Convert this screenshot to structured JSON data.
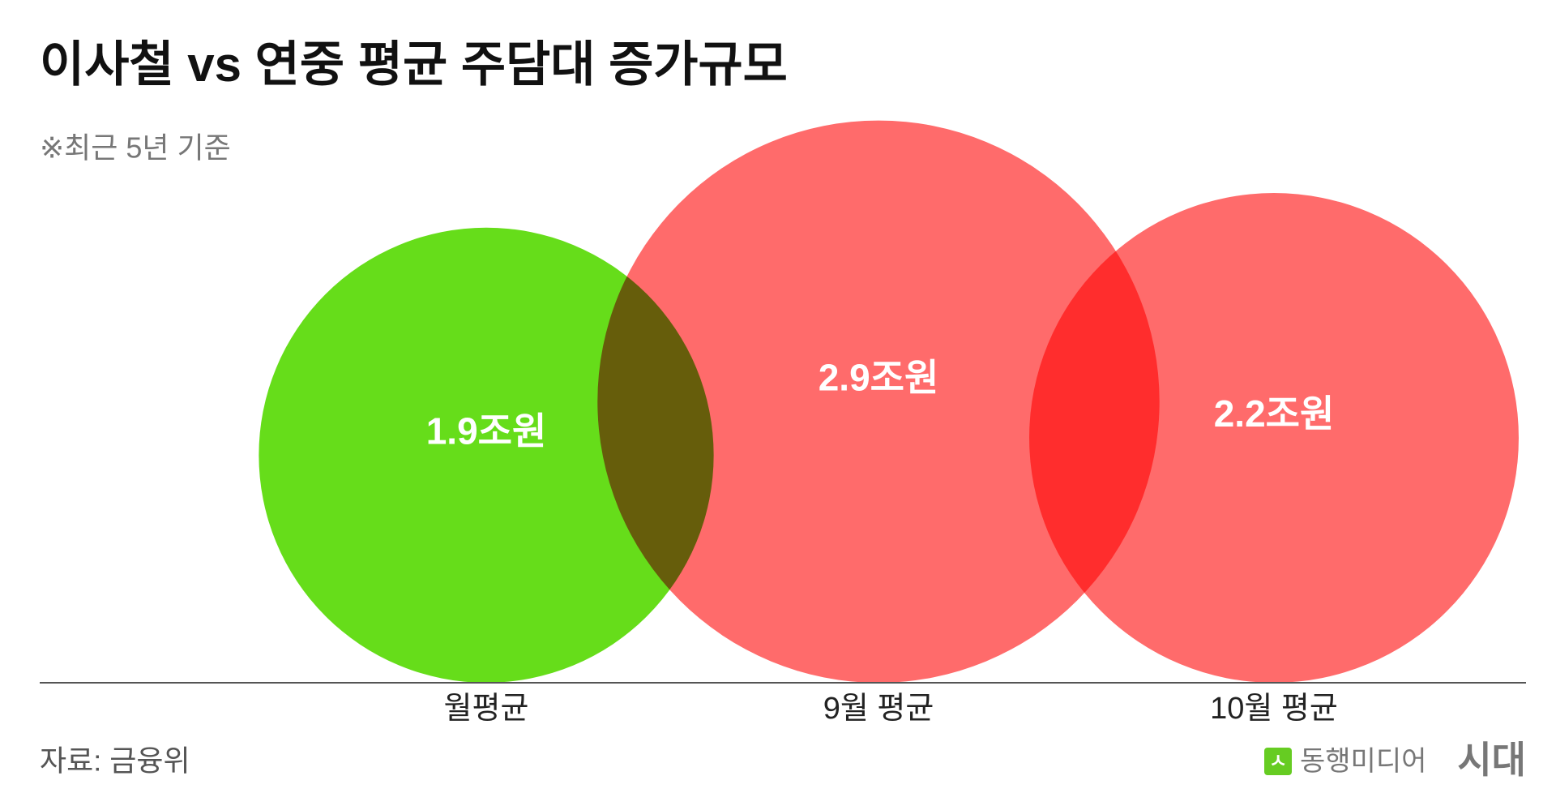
{
  "chart_data": {
    "type": "bubble",
    "title": "이사철 vs 연중 평균 주담대 증가규모",
    "subtitle": "※최근 5년 기준",
    "source": "자료: 금융위",
    "categories": [
      "월평균",
      "9월 평균",
      "10월 평균"
    ],
    "values": [
      1.9,
      2.9,
      2.2
    ],
    "value_labels": [
      "1.9조원",
      "2.9조원",
      "2.2조원"
    ],
    "colors": [
      "#66dd1a",
      "#ff6b6b",
      "#ff6b6b"
    ]
  },
  "brand": {
    "icon": "ㅅ",
    "name": "동행미디어",
    "mark": "시대"
  }
}
